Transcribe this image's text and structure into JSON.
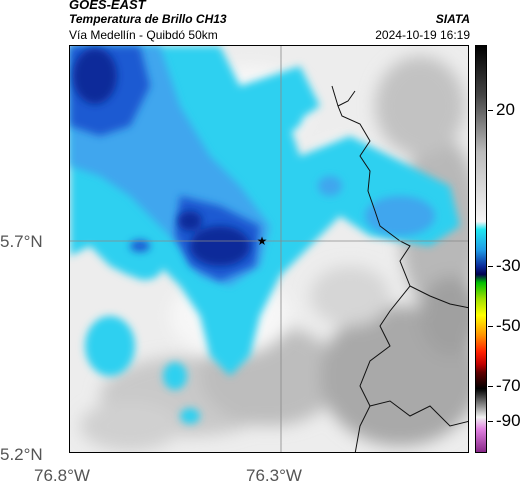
{
  "header": {
    "satellite": "GOES-EAST",
    "product": "Temperatura de Brillo CH13",
    "route": "Vía Medellín - Quibdó 50km",
    "organization": "SIATA",
    "datetime": "2024-10-19 16:19"
  },
  "map": {
    "latitude_labels": [
      "5.7°N",
      "5.2°N"
    ],
    "longitude_labels": [
      "76.8°W",
      "76.3°W"
    ],
    "marker": "star-marker",
    "colors": {
      "cloud_dark_blue": "#0a2a9a",
      "cloud_blue": "#1f5fd6",
      "cloud_light_blue": "#4aa8f0",
      "cloud_cyan": "#35d2f0",
      "clear_light": "#f2f2f2",
      "clear_gray": "#b8b8b8"
    }
  },
  "colorbar": {
    "ticks": [
      "20",
      "-30",
      "-50",
      "-70",
      "-90"
    ]
  }
}
